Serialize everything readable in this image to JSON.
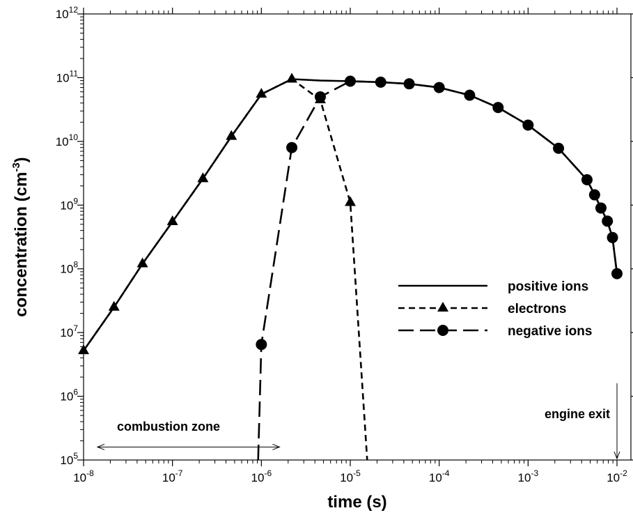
{
  "chart_data": {
    "type": "line",
    "xlabel": "time (s)",
    "ylabel_main": "concentration (cm",
    "ylabel_sup": "-3",
    "ylabel_end": ")",
    "xscale": "log",
    "yscale": "log",
    "xlim": [
      1e-08,
      0.01
    ],
    "ylim": [
      100000.0,
      1000000000000.0
    ],
    "x_ticks": [
      {
        "base": "10",
        "exp": "-8"
      },
      {
        "base": "10",
        "exp": "-7"
      },
      {
        "base": "10",
        "exp": "-6"
      },
      {
        "base": "10",
        "exp": "-5"
      },
      {
        "base": "10",
        "exp": "-4"
      },
      {
        "base": "10",
        "exp": "-3"
      },
      {
        "base": "10",
        "exp": "-2"
      }
    ],
    "y_ticks": [
      {
        "base": "10",
        "exp": "5"
      },
      {
        "base": "10",
        "exp": "6"
      },
      {
        "base": "10",
        "exp": "7"
      },
      {
        "base": "10",
        "exp": "8"
      },
      {
        "base": "10",
        "exp": "9"
      },
      {
        "base": "10",
        "exp": "10"
      },
      {
        "base": "10",
        "exp": "11"
      },
      {
        "base": "10",
        "exp": "12"
      }
    ],
    "grid": false,
    "legend_position": "right-middle",
    "series": [
      {
        "name": "positive ions",
        "line": "solid",
        "marker": "none",
        "x": [
          1e-08,
          2.2e-08,
          4.6e-08,
          1e-07,
          2.2e-07,
          4.6e-07,
          1e-06,
          2.2e-06,
          4.6e-06,
          1e-05,
          2.2e-05,
          4.6e-05,
          0.0001,
          0.00022,
          0.00046,
          0.001,
          0.0022,
          0.0046,
          0.0056,
          0.0066,
          0.0078,
          0.0089,
          0.01
        ],
        "y": [
          5200000.0,
          25000000.0,
          120000000.0,
          550000000.0,
          2600000000.0,
          12000000000.0,
          55000000000.0,
          95000000000.0,
          90000000000.0,
          88000000000.0,
          85000000000.0,
          80000000000.0,
          70000000000.0,
          53000000000.0,
          34000000000.0,
          18000000000.0,
          7800000000.0,
          2500000000.0,
          1450000000.0,
          900000000.0,
          560000000.0,
          310000000.0,
          84000000.0
        ]
      },
      {
        "name": "electrons",
        "line": "short-dash",
        "marker": "triangle",
        "x": [
          1e-08,
          2.2e-08,
          4.6e-08,
          1e-07,
          2.2e-07,
          4.6e-07,
          1e-06,
          2.2e-06,
          4.6e-06,
          1e-05,
          1.55e-05
        ],
        "y": [
          5200000.0,
          25000000.0,
          120000000.0,
          550000000.0,
          2600000000.0,
          12000000000.0,
          55000000000.0,
          95000000000.0,
          45000000000.0,
          1100000000.0,
          100000.0
        ]
      },
      {
        "name": "negative ions",
        "line": "long-dash",
        "marker": "circle",
        "x": [
          9.2e-07,
          1e-06,
          2.2e-06,
          4.6e-06,
          1e-05,
          2.2e-05,
          4.6e-05,
          0.0001,
          0.00022,
          0.00046,
          0.001,
          0.0022,
          0.0046,
          0.0056,
          0.0066,
          0.0078,
          0.0089,
          0.01
        ],
        "y": [
          100000.0,
          6500000.0,
          8000000000.0,
          50000000000.0,
          88000000000.0,
          85000000000.0,
          80000000000.0,
          70000000000.0,
          53000000000.0,
          34000000000.0,
          18000000000.0,
          7800000000.0,
          2500000000.0,
          1450000000.0,
          900000000.0,
          560000000.0,
          310000000.0,
          84000000.0
        ]
      }
    ],
    "markers": {
      "electrons": {
        "x": [
          1e-08,
          2.2e-08,
          4.6e-08,
          1e-07,
          2.2e-07,
          4.6e-07,
          1e-06,
          2.2e-06,
          4.6e-06,
          1e-05
        ],
        "y": [
          5200000.0,
          25000000.0,
          120000000.0,
          550000000.0,
          2600000000.0,
          12000000000.0,
          55000000000.0,
          95000000000.0,
          45000000000.0,
          1100000000.0
        ]
      },
      "negative_ions": {
        "x": [
          1e-06,
          2.2e-06,
          4.6e-06,
          1e-05,
          2.2e-05,
          4.6e-05,
          0.0001,
          0.00022,
          0.00046,
          0.001,
          0.0022,
          0.0046,
          0.0056,
          0.0066,
          0.0078,
          0.0089,
          0.01
        ],
        "y": [
          6500000.0,
          8000000000.0,
          50000000000.0,
          88000000000.0,
          85000000000.0,
          80000000000.0,
          70000000000.0,
          53000000000.0,
          34000000000.0,
          18000000000.0,
          7800000000.0,
          2500000000.0,
          1450000000.0,
          900000000.0,
          560000000.0,
          310000000.0,
          84000000.0
        ]
      }
    },
    "annotations": [
      {
        "name": "combustion-zone",
        "text": "combustion zone",
        "x_from": 1e-08,
        "x_to": 1.6e-06,
        "y": 160000.0
      },
      {
        "name": "engine-exit",
        "text": "engine exit",
        "x": 0.01,
        "y_from": 1600000.0,
        "y_to": 105000.0
      }
    ]
  }
}
